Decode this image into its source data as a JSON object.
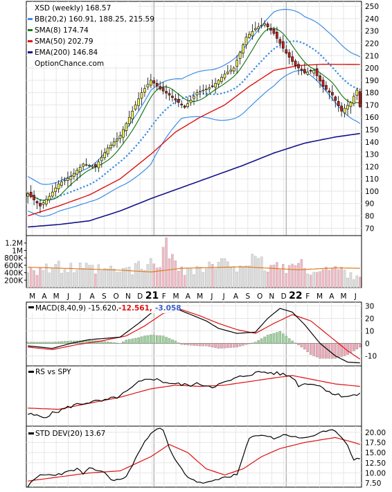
{
  "chart_data": [
    {
      "type": "candlestick",
      "panel": "price",
      "legend": [
        {
          "label": "XSD (weekly) 168.57",
          "color": "#000000",
          "marker": "none"
        },
        {
          "label": "BB(20,2) 160.91, 188.25, 215.59",
          "color": "#3a8ee6",
          "marker": "line"
        },
        {
          "label": "SMA(8) 174.74",
          "color": "#1a7a1a",
          "marker": "line"
        },
        {
          "label": "SMA(50) 202.79",
          "color": "#dd1111",
          "marker": "line"
        },
        {
          "label": "EMA(200) 146.84",
          "color": "#11118a",
          "marker": "line"
        },
        {
          "label": "OptionChance.com",
          "color": "#000000",
          "marker": "none"
        }
      ],
      "y_ticks": [
        250,
        240,
        230,
        220,
        210,
        200,
        190,
        180,
        170,
        160,
        150,
        140,
        130,
        120,
        110,
        100,
        90,
        80,
        70
      ],
      "ylim": [
        64,
        254
      ],
      "x_tick_labels": [
        "M",
        "A",
        "M",
        "J",
        "J",
        "A",
        "S",
        "O",
        "N",
        "D",
        "21",
        "F",
        "M",
        "A",
        "M",
        "J",
        "J",
        "A",
        "S",
        "O",
        "N",
        "D",
        "22",
        "F",
        "M",
        "A",
        "M",
        "J"
      ],
      "year_labels": [
        "21",
        "22"
      ],
      "close_anchors": [
        [
          0,
          98
        ],
        [
          4,
          88
        ],
        [
          7,
          96
        ],
        [
          10,
          106
        ],
        [
          14,
          112
        ],
        [
          18,
          122
        ],
        [
          22,
          120
        ],
        [
          26,
          135
        ],
        [
          30,
          145
        ],
        [
          34,
          165
        ],
        [
          37,
          180
        ],
        [
          40,
          190
        ],
        [
          43,
          183
        ],
        [
          46,
          178
        ],
        [
          49,
          172
        ],
        [
          51,
          168
        ],
        [
          55,
          180
        ],
        [
          60,
          185
        ],
        [
          64,
          195
        ],
        [
          67,
          200
        ],
        [
          71,
          225
        ],
        [
          74,
          232
        ],
        [
          77,
          236
        ],
        [
          80,
          228
        ],
        [
          84,
          212
        ],
        [
          87,
          202
        ],
        [
          90,
          196
        ],
        [
          93,
          198
        ],
        [
          96,
          185
        ],
        [
          99,
          178
        ],
        [
          102,
          165
        ],
        [
          105,
          172
        ],
        [
          107,
          182
        ],
        [
          108,
          168.57
        ]
      ],
      "sma50_anchors": [
        [
          0,
          80
        ],
        [
          10,
          88
        ],
        [
          20,
          97
        ],
        [
          30,
          110
        ],
        [
          40,
          130
        ],
        [
          48,
          148
        ],
        [
          56,
          160
        ],
        [
          64,
          170
        ],
        [
          72,
          185
        ],
        [
          80,
          198
        ],
        [
          88,
          202
        ],
        [
          96,
          203
        ],
        [
          108,
          202.79
        ]
      ],
      "ema200_anchors": [
        [
          0,
          71
        ],
        [
          10,
          73
        ],
        [
          20,
          76
        ],
        [
          30,
          84
        ],
        [
          40,
          94
        ],
        [
          50,
          103
        ],
        [
          60,
          112
        ],
        [
          70,
          121
        ],
        [
          80,
          131
        ],
        [
          90,
          139
        ],
        [
          100,
          144
        ],
        [
          108,
          146.84
        ]
      ],
      "bb_width_anchors": [
        [
          0,
          14
        ],
        [
          10,
          12
        ],
        [
          20,
          14
        ],
        [
          30,
          20
        ],
        [
          40,
          30
        ],
        [
          50,
          16
        ],
        [
          60,
          20
        ],
        [
          70,
          26
        ],
        [
          80,
          30
        ],
        [
          90,
          22
        ],
        [
          100,
          26
        ],
        [
          108,
          27
        ]
      ]
    },
    {
      "type": "bar",
      "panel": "volume",
      "y_ticks": [
        "1.2M",
        "1M",
        "800K",
        "600K",
        "400K",
        "200K"
      ],
      "ylim": [
        0,
        1400000
      ],
      "values_anchor": [
        [
          0,
          550000
        ],
        [
          15,
          500000
        ],
        [
          30,
          430000
        ],
        [
          40,
          600000
        ],
        [
          45,
          1000000
        ],
        [
          52,
          450000
        ],
        [
          60,
          550000
        ],
        [
          70,
          700000
        ],
        [
          80,
          550000
        ],
        [
          87,
          600000
        ],
        [
          95,
          450000
        ],
        [
          100,
          500000
        ],
        [
          108,
          300000
        ]
      ],
      "average_line_anchor": [
        [
          0,
          550000
        ],
        [
          30,
          470000
        ],
        [
          40,
          420000
        ],
        [
          50,
          520000
        ],
        [
          70,
          560000
        ],
        [
          88,
          480000
        ],
        [
          100,
          530000
        ],
        [
          108,
          520000
        ]
      ]
    },
    {
      "type": "line",
      "panel": "macd",
      "title": "MACD(8,40,9) -15.620,",
      "values_label": "-12.561,",
      "signal_label": "-3.058",
      "y_ticks": [
        30,
        20,
        10,
        0,
        -10
      ],
      "ylim": [
        -18,
        33
      ],
      "macd_anchors": [
        [
          0,
          -2
        ],
        [
          8,
          -4
        ],
        [
          14,
          0
        ],
        [
          20,
          3
        ],
        [
          30,
          5
        ],
        [
          36,
          16
        ],
        [
          40,
          24
        ],
        [
          44,
          30
        ],
        [
          48,
          28
        ],
        [
          52,
          24
        ],
        [
          58,
          18
        ],
        [
          62,
          12
        ],
        [
          68,
          8
        ],
        [
          74,
          9
        ],
        [
          78,
          20
        ],
        [
          82,
          28
        ],
        [
          86,
          25
        ],
        [
          90,
          15
        ],
        [
          95,
          0
        ],
        [
          100,
          -10
        ],
        [
          104,
          -15
        ],
        [
          108,
          -15.62
        ]
      ],
      "signal_anchors": [
        [
          0,
          -3
        ],
        [
          8,
          -5
        ],
        [
          16,
          -1
        ],
        [
          24,
          2
        ],
        [
          32,
          6
        ],
        [
          38,
          14
        ],
        [
          44,
          24
        ],
        [
          50,
          27
        ],
        [
          56,
          22
        ],
        [
          62,
          16
        ],
        [
          68,
          11
        ],
        [
          74,
          8
        ],
        [
          80,
          16
        ],
        [
          86,
          23
        ],
        [
          92,
          18
        ],
        [
          98,
          6
        ],
        [
          104,
          -6
        ],
        [
          108,
          -12.561
        ]
      ]
    },
    {
      "type": "line",
      "panel": "rs",
      "title": "RS vs SPY",
      "rs_anchors": [
        [
          0,
          20
        ],
        [
          5,
          15
        ],
        [
          10,
          25
        ],
        [
          15,
          35
        ],
        [
          20,
          40
        ],
        [
          25,
          42
        ],
        [
          30,
          50
        ],
        [
          33,
          60
        ],
        [
          36,
          72
        ],
        [
          40,
          80
        ],
        [
          44,
          74
        ],
        [
          48,
          70
        ],
        [
          52,
          68
        ],
        [
          56,
          70
        ],
        [
          60,
          66
        ],
        [
          64,
          72
        ],
        [
          68,
          80
        ],
        [
          72,
          86
        ],
        [
          76,
          90
        ],
        [
          80,
          88
        ],
        [
          83,
          86
        ],
        [
          86,
          82
        ],
        [
          88,
          68
        ],
        [
          92,
          72
        ],
        [
          96,
          64
        ],
        [
          100,
          52
        ],
        [
          104,
          50
        ],
        [
          108,
          52
        ]
      ],
      "ma_anchors": [
        [
          0,
          30
        ],
        [
          10,
          28
        ],
        [
          20,
          38
        ],
        [
          30,
          48
        ],
        [
          40,
          62
        ],
        [
          48,
          68
        ],
        [
          56,
          66
        ],
        [
          64,
          68
        ],
        [
          72,
          74
        ],
        [
          80,
          80
        ],
        [
          86,
          84
        ],
        [
          92,
          78
        ],
        [
          100,
          70
        ],
        [
          108,
          66
        ]
      ]
    },
    {
      "type": "line",
      "panel": "stddev",
      "title": "STD DEV(20) 13.67",
      "y_ticks": [
        20.0,
        17.5,
        15.0,
        12.5,
        10.0,
        7.5
      ],
      "y_tick_labels": [
        "20.00",
        "17.50",
        "15.00",
        "12.50",
        "10.00",
        "7.50"
      ],
      "ylim": [
        6.5,
        21.5
      ],
      "std_anchors": [
        [
          0,
          6.8
        ],
        [
          4,
          9.5
        ],
        [
          8,
          9.5
        ],
        [
          12,
          10
        ],
        [
          16,
          11
        ],
        [
          18,
          9.8
        ],
        [
          20,
          11
        ],
        [
          24,
          10.5
        ],
        [
          28,
          8
        ],
        [
          32,
          9
        ],
        [
          36,
          15
        ],
        [
          40,
          20
        ],
        [
          42,
          21
        ],
        [
          44,
          20.5
        ],
        [
          46,
          16
        ],
        [
          48,
          13
        ],
        [
          52,
          9
        ],
        [
          56,
          7.5
        ],
        [
          60,
          7.8
        ],
        [
          64,
          9
        ],
        [
          68,
          9.5
        ],
        [
          72,
          18.5
        ],
        [
          76,
          19.5
        ],
        [
          80,
          18.5
        ],
        [
          84,
          19.5
        ],
        [
          88,
          18.5
        ],
        [
          92,
          19
        ],
        [
          96,
          20
        ],
        [
          100,
          20.5
        ],
        [
          104,
          17
        ],
        [
          106,
          13
        ],
        [
          108,
          13.67
        ]
      ],
      "ma_anchors": [
        [
          0,
          8
        ],
        [
          10,
          9
        ],
        [
          20,
          10
        ],
        [
          30,
          10.5
        ],
        [
          40,
          14
        ],
        [
          46,
          17
        ],
        [
          52,
          15
        ],
        [
          58,
          11
        ],
        [
          64,
          9.5
        ],
        [
          70,
          11
        ],
        [
          76,
          14
        ],
        [
          82,
          16
        ],
        [
          90,
          17.5
        ],
        [
          100,
          18.7
        ],
        [
          106,
          17.5
        ],
        [
          108,
          17
        ]
      ]
    }
  ]
}
